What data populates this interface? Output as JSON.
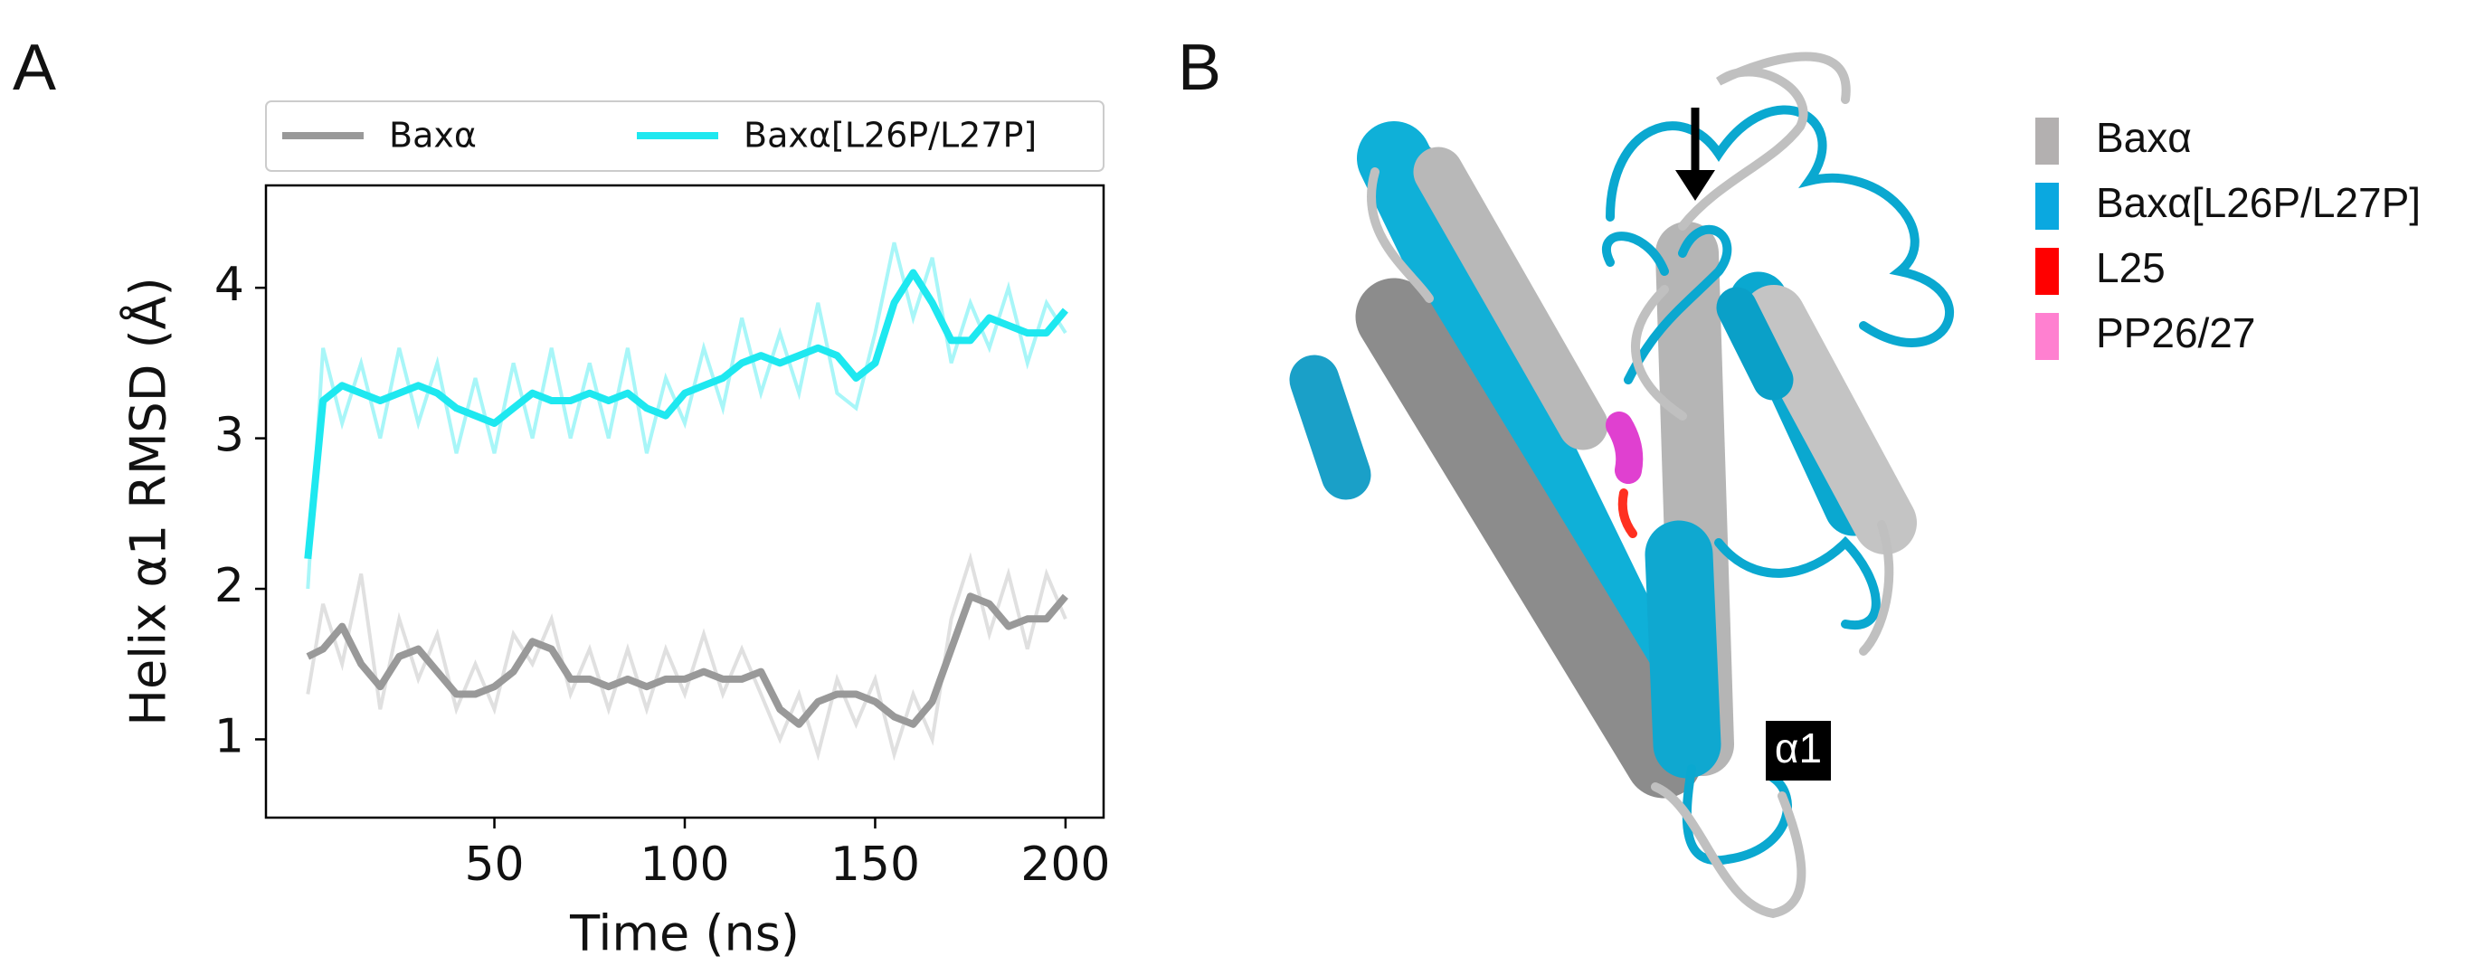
{
  "panel_labels": [
    "A",
    "B"
  ],
  "chart_data": {
    "type": "line",
    "xlabel": "Time (ns)",
    "ylabel": "Helix α1 RMSD (Å)",
    "x": [
      1,
      5,
      10,
      15,
      20,
      25,
      30,
      35,
      40,
      45,
      50,
      55,
      60,
      65,
      70,
      75,
      80,
      85,
      90,
      95,
      100,
      105,
      110,
      115,
      120,
      125,
      130,
      135,
      140,
      145,
      150,
      155,
      160,
      165,
      170,
      175,
      180,
      185,
      190,
      195,
      200
    ],
    "series": [
      {
        "name": "Baxα",
        "color": "#999999",
        "raw_color": "#e0e0e0",
        "values": [
          1.55,
          1.6,
          1.75,
          1.5,
          1.35,
          1.55,
          1.6,
          1.45,
          1.3,
          1.3,
          1.35,
          1.45,
          1.65,
          1.6,
          1.4,
          1.4,
          1.35,
          1.4,
          1.35,
          1.4,
          1.4,
          1.45,
          1.4,
          1.4,
          1.45,
          1.2,
          1.1,
          1.25,
          1.3,
          1.3,
          1.25,
          1.15,
          1.1,
          1.25,
          1.6,
          1.95,
          1.9,
          1.75,
          1.8,
          1.8,
          1.95
        ],
        "raw_values": [
          1.3,
          1.9,
          1.5,
          2.1,
          1.2,
          1.8,
          1.4,
          1.7,
          1.2,
          1.5,
          1.2,
          1.7,
          1.5,
          1.8,
          1.3,
          1.6,
          1.2,
          1.6,
          1.2,
          1.6,
          1.3,
          1.7,
          1.3,
          1.6,
          1.3,
          1.0,
          1.3,
          0.9,
          1.4,
          1.1,
          1.4,
          0.9,
          1.3,
          1.0,
          1.8,
          2.2,
          1.7,
          2.1,
          1.6,
          2.1,
          1.8
        ]
      },
      {
        "name": "Baxα[L26P/L27P]",
        "color": "#1ee8f0",
        "raw_color": "#a8f6f8",
        "values": [
          2.2,
          3.25,
          3.35,
          3.3,
          3.25,
          3.3,
          3.35,
          3.3,
          3.2,
          3.15,
          3.1,
          3.2,
          3.3,
          3.25,
          3.25,
          3.3,
          3.25,
          3.3,
          3.2,
          3.15,
          3.3,
          3.35,
          3.4,
          3.5,
          3.55,
          3.5,
          3.55,
          3.6,
          3.55,
          3.4,
          3.5,
          3.9,
          4.1,
          3.9,
          3.65,
          3.65,
          3.8,
          3.75,
          3.7,
          3.7,
          3.85
        ],
        "raw_values": [
          2.0,
          3.6,
          3.1,
          3.5,
          3.0,
          3.6,
          3.1,
          3.5,
          2.9,
          3.4,
          2.9,
          3.5,
          3.0,
          3.6,
          3.0,
          3.5,
          3.0,
          3.6,
          2.9,
          3.4,
          3.1,
          3.6,
          3.2,
          3.8,
          3.3,
          3.7,
          3.3,
          3.9,
          3.3,
          3.2,
          3.7,
          4.3,
          3.8,
          4.2,
          3.5,
          3.9,
          3.6,
          4.0,
          3.5,
          3.9,
          3.7
        ]
      }
    ],
    "xlim": [
      -10,
      210
    ],
    "xticks": [
      50,
      100,
      150,
      200
    ],
    "ylim": [
      0.48,
      4.68
    ],
    "yticks": [
      1,
      2,
      3,
      4
    ],
    "legend": "top-outside"
  },
  "structure": {
    "legend": [
      {
        "name": "Baxα",
        "color": "#b3b0b0"
      },
      {
        "name": "Baxα[L26P/L27P]",
        "color": "#0aa8e0"
      },
      {
        "name": "L25",
        "color": "#ff0000"
      },
      {
        "name": "PP26/27",
        "color": "#ff80d0"
      }
    ],
    "annotation": "α1"
  }
}
